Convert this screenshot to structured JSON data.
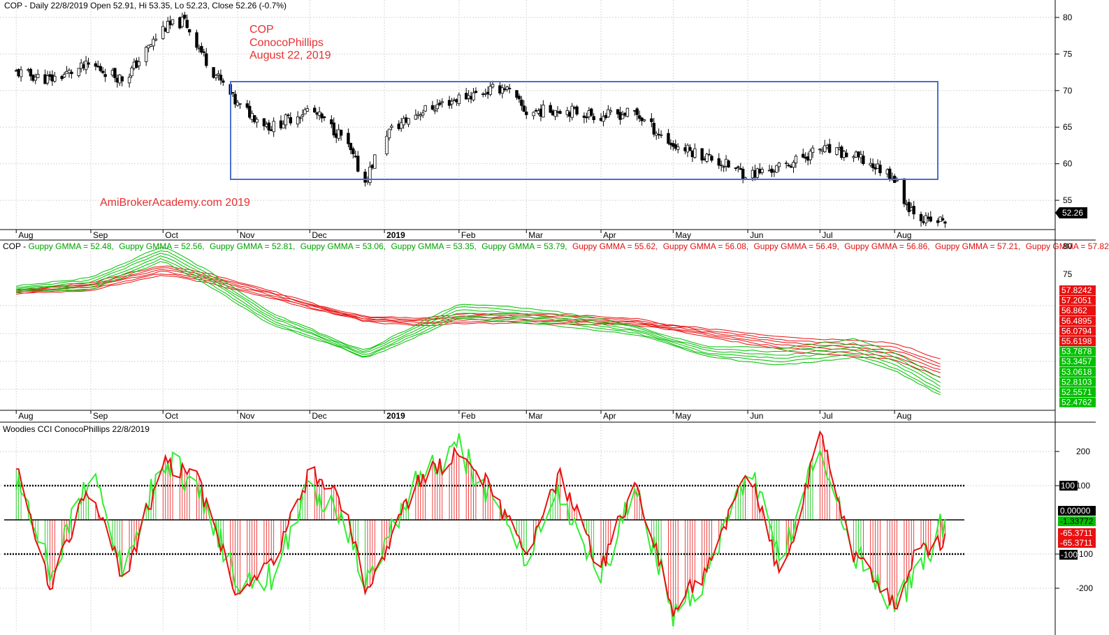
{
  "colors": {
    "green": "#00c000",
    "bright_green": "#33ee33",
    "red": "#e81010",
    "black": "#000000",
    "box": "#4a6fd0",
    "annotation": "#e83030",
    "grid": "#d6d6d6"
  },
  "price_pane": {
    "header": "COP - Daily 22/8/2019 Open 52.91, Hi 53.35, Lo 52.23, Close 52.26 (-0.7%)",
    "annotations": [
      "COP",
      "ConocoPhillips",
      "August 22, 2019"
    ],
    "watermark": "AmiBroker​Academy.com   2019",
    "last_price_label": "52.26"
  },
  "gmma_pane": {
    "header_prefix": "COP - ",
    "values_labels": [
      {
        "text": "Guppy GMMA = 52.48,",
        "color": "green"
      },
      {
        "text": "Guppy GMMA = 52.56,",
        "color": "green"
      },
      {
        "text": "Guppy GMMA = 52.81,",
        "color": "green"
      },
      {
        "text": "Guppy GMMA = 53.06,",
        "color": "green"
      },
      {
        "text": "Guppy GMMA = 53.35,",
        "color": "green"
      },
      {
        "text": "Guppy GMMA = 53.79,",
        "color": "green"
      },
      {
        "text": "Guppy GMMA = 55.62,",
        "color": "red"
      },
      {
        "text": "Guppy GMMA = 56.08,",
        "color": "red"
      },
      {
        "text": "Guppy GMMA = 56.49,",
        "color": "red"
      },
      {
        "text": "Guppy GMMA = 56.86,",
        "color": "red"
      },
      {
        "text": "Guppy GMMA = 57.21,",
        "color": "red"
      },
      {
        "text": "Guppy GMMA = 57.82",
        "color": "red"
      }
    ],
    "axis_labels": [
      "80",
      "75"
    ],
    "value_tags": [
      {
        "text": "57.8242",
        "color": "red"
      },
      {
        "text": "57.2051",
        "color": "red"
      },
      {
        "text": "56.862",
        "color": "red"
      },
      {
        "text": "56.4895",
        "color": "red"
      },
      {
        "text": "56.0794",
        "color": "red"
      },
      {
        "text": "55.6198",
        "color": "red"
      },
      {
        "text": "53.7878",
        "color": "green"
      },
      {
        "text": "53.3457",
        "color": "green"
      },
      {
        "text": "53.0618",
        "color": "green"
      },
      {
        "text": "52.8103",
        "color": "green"
      },
      {
        "text": "52.5571",
        "color": "green"
      },
      {
        "text": "52.4762",
        "color": "green"
      }
    ]
  },
  "cci_pane": {
    "header": "Woodies CCI  ConocoPhillips 22/8/2019",
    "value_tags": [
      {
        "text": "100",
        "bg": "#000000",
        "fg": "#ffffff"
      },
      {
        "text": "0.00000",
        "bg": "#000000",
        "fg": "#ffffff"
      },
      {
        "text": "-1.33772",
        "bg": "#00c000",
        "fg": "#000000"
      },
      {
        "text": "-65.3711",
        "bg": "#e81010",
        "fg": "#ffffff"
      },
      {
        "text": "-65.3711",
        "bg": "#e81010",
        "fg": "#ffffff"
      },
      {
        "text": "-100",
        "bg": "#000000",
        "fg": "#ffffff"
      }
    ]
  },
  "month_labels": [
    "Aug",
    "Sep",
    "Oct",
    "Nov",
    "Dec",
    "2019",
    "Feb",
    "Mar",
    "Apr",
    "May",
    "Jun",
    "Jul",
    "Aug"
  ],
  "chart_data": [
    {
      "type": "candlestick",
      "title": "COP - Daily 22/8/2019 Open 52.91, Hi 53.35, Lo 52.23, Close 52.26 (-0.7%)",
      "ylim": [
        51,
        82
      ],
      "y_ticks": [
        55,
        60,
        65,
        70,
        75,
        80
      ],
      "x_tick_labels": [
        "Aug",
        "Sep",
        "Oct",
        "Nov",
        "Dec",
        "2019",
        "Feb",
        "Mar",
        "Apr",
        "May",
        "Jun",
        "Jul",
        "Aug"
      ],
      "grid": true,
      "x": [
        "2018-08-01",
        "2018-08-15",
        "2018-09-01",
        "2018-09-15",
        "2018-10-01",
        "2018-10-10",
        "2018-10-20",
        "2018-11-01",
        "2018-11-15",
        "2018-12-01",
        "2018-12-15",
        "2018-12-24",
        "2019-01-01",
        "2019-01-15",
        "2019-02-01",
        "2019-02-20",
        "2019-03-01",
        "2019-03-15",
        "2019-04-01",
        "2019-04-15",
        "2019-05-01",
        "2019-05-15",
        "2019-06-01",
        "2019-06-15",
        "2019-07-01",
        "2019-07-15",
        "2019-07-31",
        "2019-08-06",
        "2019-08-15",
        "2019-08-22"
      ],
      "close": [
        72.5,
        71.5,
        73.5,
        71.5,
        78.5,
        79.5,
        73.5,
        68.0,
        65.0,
        67.5,
        63.5,
        57.5,
        64.0,
        67.0,
        69.0,
        70.5,
        67.0,
        67.5,
        66.5,
        67.0,
        62.5,
        61.0,
        58.5,
        59.5,
        62.0,
        61.0,
        58.5,
        54.5,
        52.0,
        52.26
      ],
      "range_box": {
        "x_from": "2018-10-26",
        "x_to": "2019-08-01",
        "y_from": 57,
        "y_to": 71
      }
    },
    {
      "type": "line",
      "title": "Guppy GMMA",
      "ylim": [
        48,
        80
      ],
      "y_ticks": [
        75,
        80
      ],
      "grid": true,
      "x": [
        "2018-08-01",
        "2018-09-01",
        "2018-10-01",
        "2018-10-20",
        "2018-11-15",
        "2018-12-01",
        "2018-12-24",
        "2019-01-15",
        "2019-02-01",
        "2019-02-20",
        "2019-03-15",
        "2019-04-15",
        "2019-05-15",
        "2019-06-15",
        "2019-07-15",
        "2019-08-01",
        "2019-08-22"
      ],
      "short_term_final": [
        52.48,
        52.56,
        52.81,
        53.06,
        53.35,
        53.79
      ],
      "long_term_final": [
        55.62,
        56.08,
        56.49,
        56.86,
        57.21,
        57.82
      ],
      "short_term_base": [
        71.5,
        72.5,
        78.0,
        73.5,
        66.0,
        63.5,
        59.5,
        64.0,
        67.5,
        67.0,
        66.0,
        64.0,
        60.0,
        59.0,
        60.5,
        58.0,
        52.8
      ],
      "long_term_base": [
        71.0,
        72.0,
        75.0,
        73.5,
        70.5,
        68.5,
        66.0,
        65.5,
        66.0,
        66.2,
        66.0,
        65.5,
        63.5,
        61.5,
        60.5,
        60.0,
        56.6
      ]
    },
    {
      "type": "line",
      "title": "Woodies CCI  ConocoPhillips 22/8/2019",
      "ylim": [
        -310,
        310
      ],
      "y_ticks": [
        -200,
        -100,
        100,
        200
      ],
      "reference_lines": [
        -100,
        0,
        100
      ],
      "grid": true,
      "x": [
        "2018-08-01",
        "2018-08-15",
        "2018-09-01",
        "2018-09-15",
        "2018-10-01",
        "2018-10-15",
        "2018-11-01",
        "2018-11-15",
        "2018-12-01",
        "2018-12-15",
        "2018-12-24",
        "2019-01-15",
        "2019-02-01",
        "2019-02-15",
        "2019-03-01",
        "2019-03-15",
        "2019-04-01",
        "2019-04-15",
        "2019-05-01",
        "2019-05-15",
        "2019-06-01",
        "2019-06-15",
        "2019-07-01",
        "2019-07-15",
        "2019-08-01",
        "2019-08-10",
        "2019-08-22"
      ],
      "cci": [
        150,
        -200,
        110,
        -180,
        170,
        120,
        -210,
        -140,
        140,
        50,
        -200,
        110,
        200,
        90,
        -120,
        130,
        -150,
        110,
        -260,
        -150,
        170,
        -180,
        250,
        -100,
        -250,
        -100,
        -65
      ],
      "turbo_cci": [
        100,
        -150,
        130,
        -150,
        180,
        100,
        -190,
        -170,
        100,
        0,
        -190,
        120,
        210,
        50,
        -120,
        80,
        -160,
        90,
        -270,
        -160,
        150,
        -110,
        230,
        -100,
        -240,
        -160,
        -1
      ]
    }
  ]
}
